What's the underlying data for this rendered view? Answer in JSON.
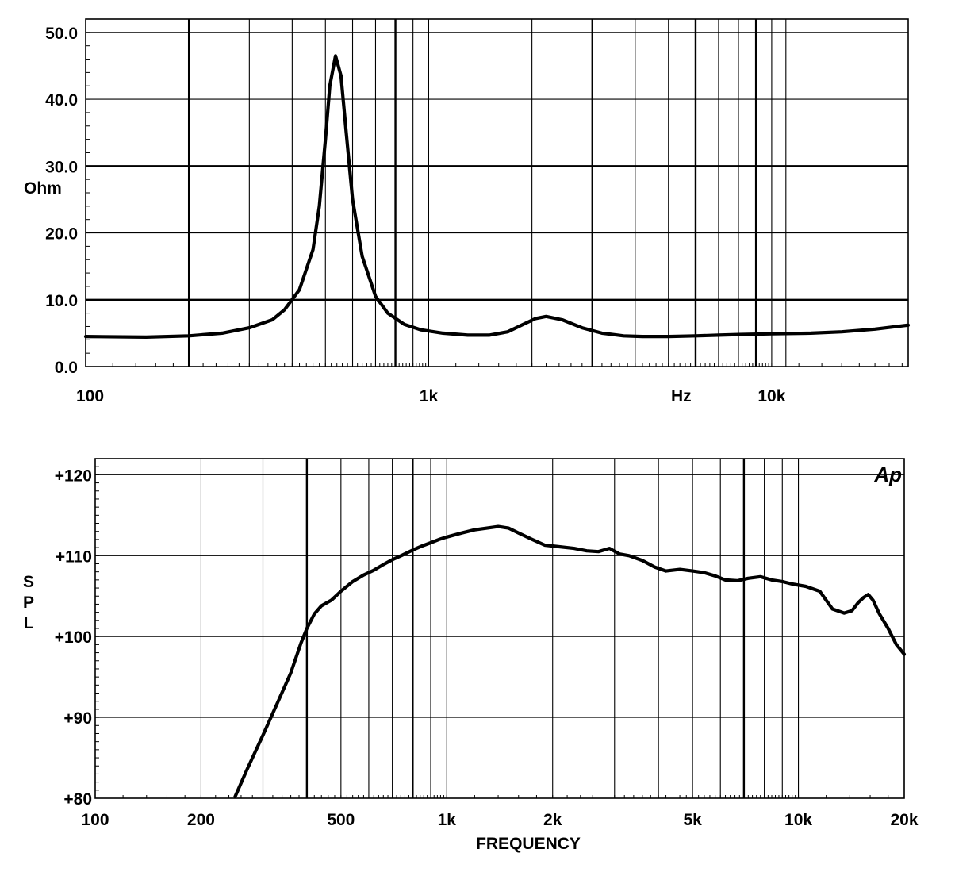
{
  "chart_data": [
    {
      "type": "line",
      "xscale": "log",
      "xlim": [
        100,
        25000
      ],
      "ylim": [
        0,
        52
      ],
      "grid": true,
      "ylabel": "Ohm",
      "xunit": "Hz",
      "xtick_labels": [
        {
          "value": 100,
          "label": "100"
        },
        {
          "value": 1000,
          "label": "1k"
        },
        {
          "value": 10000,
          "label": "10k"
        }
      ],
      "ytick_labels": [
        {
          "value": 0,
          "label": "0.0"
        },
        {
          "value": 10,
          "label": "10.0"
        },
        {
          "value": 20,
          "label": "20.0"
        },
        {
          "value": 30,
          "label": "30.0"
        },
        {
          "value": 40,
          "label": "40.0"
        },
        {
          "value": 50,
          "label": "50.0"
        }
      ],
      "x_gridlines": [
        200,
        300,
        400,
        500,
        600,
        700,
        800,
        900,
        1000,
        2000,
        3000,
        4000,
        5000,
        6000,
        7000,
        8000,
        9000,
        10000,
        11000
      ],
      "y_gridlines": [
        10,
        20,
        30,
        40,
        50
      ],
      "series": [
        {
          "x": [
            100,
            150,
            200,
            250,
            300,
            350,
            380,
            420,
            460,
            480,
            500,
            515,
            535,
            555,
            575,
            600,
            640,
            700,
            760,
            850,
            950,
            1100,
            1300,
            1500,
            1700,
            1900,
            2050,
            2200,
            2450,
            2800,
            3200,
            3700,
            4200,
            5000,
            6000,
            7000,
            8000,
            10000,
            13000,
            16000,
            20000,
            25000
          ],
          "y": [
            4.5,
            4.4,
            4.6,
            5.0,
            5.8,
            7.0,
            8.5,
            11.5,
            17.5,
            24.0,
            34.0,
            42.0,
            46.5,
            43.5,
            35.0,
            25.0,
            16.5,
            10.5,
            8.0,
            6.3,
            5.5,
            5.0,
            4.7,
            4.7,
            5.2,
            6.4,
            7.2,
            7.5,
            7.0,
            5.8,
            5.0,
            4.6,
            4.5,
            4.5,
            4.6,
            4.7,
            4.8,
            4.9,
            5.0,
            5.2,
            5.6,
            6.2
          ]
        }
      ]
    },
    {
      "type": "line",
      "xscale": "log",
      "xlim": [
        100,
        20000
      ],
      "ylim": [
        80,
        122
      ],
      "grid": true,
      "ylabel": "SPL",
      "xlabel": "FREQUENCY",
      "xtick_labels": [
        {
          "value": 100,
          "label": "100"
        },
        {
          "value": 200,
          "label": "200"
        },
        {
          "value": 500,
          "label": "500"
        },
        {
          "value": 1000,
          "label": "1k"
        },
        {
          "value": 2000,
          "label": "2k"
        },
        {
          "value": 5000,
          "label": "5k"
        },
        {
          "value": 10000,
          "label": "10k"
        },
        {
          "value": 20000,
          "label": "20k"
        }
      ],
      "ytick_labels": [
        {
          "value": 80,
          "label": "+80"
        },
        {
          "value": 90,
          "label": "+90"
        },
        {
          "value": 100,
          "label": "+100"
        },
        {
          "value": 110,
          "label": "+110"
        },
        {
          "value": 120,
          "label": "+120"
        }
      ],
      "x_gridlines": [
        200,
        300,
        400,
        500,
        600,
        700,
        800,
        900,
        1000,
        2000,
        3000,
        4000,
        5000,
        6000,
        7000,
        8000,
        9000,
        10000,
        20000
      ],
      "y_gridlines": [
        90,
        100,
        110,
        120
      ],
      "logo": "Ap",
      "series": [
        {
          "x": [
            250,
            270,
            300,
            330,
            360,
            385,
            400,
            420,
            440,
            470,
            500,
            540,
            580,
            620,
            660,
            700,
            750,
            800,
            850,
            900,
            950,
            1000,
            1100,
            1200,
            1300,
            1400,
            1500,
            1600,
            1750,
            1900,
            2100,
            2300,
            2500,
            2700,
            2900,
            3100,
            3300,
            3600,
            3900,
            4200,
            4600,
            5000,
            5400,
            5800,
            6200,
            6700,
            7200,
            7800,
            8400,
            9000,
            9600,
            10500,
            11500,
            12500,
            13500,
            14200,
            14800,
            15300,
            15800,
            16300,
            17000,
            18000,
            19000,
            20000
          ],
          "y": [
            80.2,
            83.5,
            87.8,
            91.8,
            95.5,
            99.2,
            101.0,
            102.8,
            103.8,
            104.5,
            105.6,
            106.8,
            107.6,
            108.2,
            108.9,
            109.5,
            110.1,
            110.7,
            111.2,
            111.6,
            112.0,
            112.3,
            112.8,
            113.2,
            113.4,
            113.6,
            113.4,
            112.8,
            112.0,
            111.3,
            111.1,
            110.9,
            110.6,
            110.5,
            110.9,
            110.2,
            110.0,
            109.4,
            108.6,
            108.1,
            108.3,
            108.1,
            107.9,
            107.5,
            107.0,
            106.9,
            107.2,
            107.4,
            107.0,
            106.8,
            106.5,
            106.2,
            105.6,
            103.4,
            102.9,
            103.2,
            104.2,
            104.8,
            105.2,
            104.5,
            102.8,
            101.0,
            99.0,
            97.8
          ]
        }
      ]
    }
  ]
}
